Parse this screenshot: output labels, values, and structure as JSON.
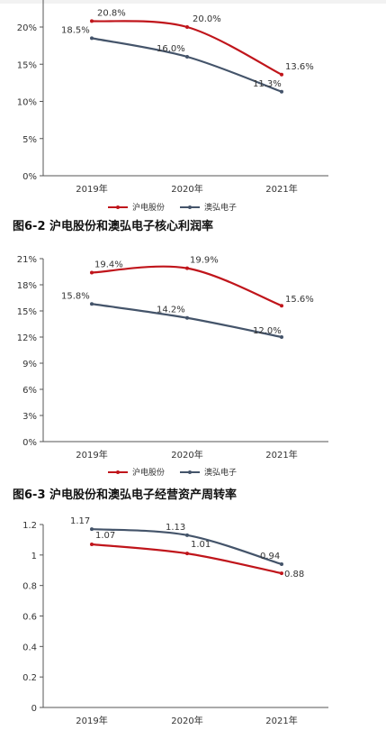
{
  "colors": {
    "series_a": "#c0151b",
    "series_b": "#44546a",
    "axis": "#555555"
  },
  "titles": {
    "fig2": "图6-2 沪电股份和澳弘电子核心利润率",
    "fig3": "图6-3 沪电股份和澳弘电子经营资产周转率"
  },
  "chart_data": [
    {
      "type": "line",
      "title": "",
      "categories": [
        "2019年",
        "2020年",
        "2021年"
      ],
      "yticks": [
        "0%",
        "5%",
        "10%",
        "15%",
        "20%"
      ],
      "ylim": [
        0,
        24
      ],
      "series": [
        {
          "name": "沪电股份",
          "values": [
            20.8,
            20.0,
            13.6
          ],
          "labels": [
            "20.8%",
            "20.0%",
            "13.6%"
          ]
        },
        {
          "name": "澳弘电子",
          "values": [
            18.5,
            16.0,
            11.3
          ],
          "labels": [
            "18.5%",
            "16.0%",
            "11.3%"
          ]
        }
      ],
      "legend": "bottom"
    },
    {
      "type": "line",
      "title": "图6-2 沪电股份和澳弘电子核心利润率",
      "categories": [
        "2019年",
        "2020年",
        "2021年"
      ],
      "yticks": [
        "0%",
        "3%",
        "6%",
        "9%",
        "12%",
        "15%",
        "18%",
        "21%"
      ],
      "ylim": [
        0,
        21
      ],
      "series": [
        {
          "name": "沪电股份",
          "values": [
            19.4,
            19.9,
            15.6
          ],
          "labels": [
            "19.4%",
            "19.9%",
            "15.6%"
          ]
        },
        {
          "name": "澳弘电子",
          "values": [
            15.8,
            14.2,
            12.0
          ],
          "labels": [
            "15.8%",
            "14.2%",
            "12.0%"
          ]
        }
      ],
      "legend": "bottom"
    },
    {
      "type": "line",
      "title": "图6-3 沪电股份和澳弘电子经营资产周转率",
      "categories": [
        "2019年",
        "2020年",
        "2021年"
      ],
      "yticks": [
        "0",
        "0.2",
        "0.4",
        "0.6",
        "0.8",
        "1",
        "1.2"
      ],
      "ylim": [
        0,
        1.2
      ],
      "series": [
        {
          "name": "沪电股份",
          "values": [
            1.07,
            1.01,
            0.88
          ],
          "labels": [
            "1.07",
            "1.01",
            "0.88"
          ]
        },
        {
          "name": "澳弘电子",
          "values": [
            1.17,
            1.13,
            0.94
          ],
          "labels": [
            "1.17",
            "1.13",
            "0.94"
          ]
        }
      ],
      "legend": "bottom"
    }
  ]
}
